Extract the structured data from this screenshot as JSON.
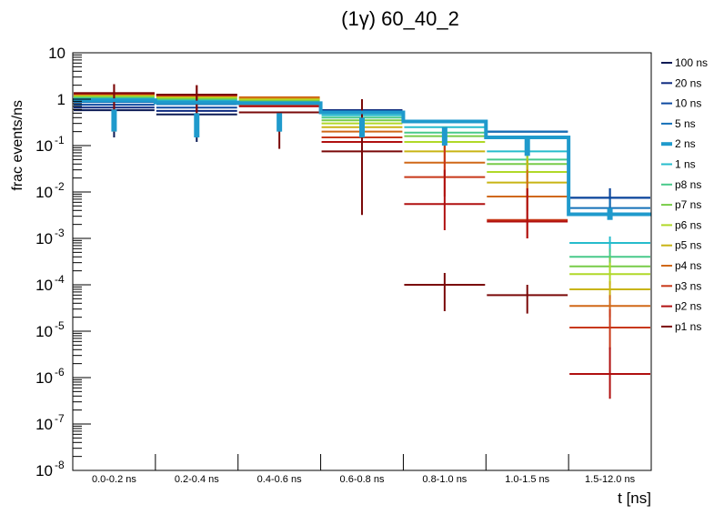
{
  "chart_data": {
    "type": "line",
    "title": "(1γ) 60_40_2",
    "xlabel": "t [ns]",
    "ylabel": "frac events/ns",
    "yscale": "log",
    "ylim": [
      1e-08,
      10
    ],
    "ytick_labels": [
      {
        "base": "10",
        "exp": "-8",
        "value": 1e-08
      },
      {
        "base": "10",
        "exp": "-7",
        "value": 1e-07
      },
      {
        "base": "10",
        "exp": "-6",
        "value": 1e-06
      },
      {
        "base": "10",
        "exp": "-5",
        "value": 1e-05
      },
      {
        "base": "10",
        "exp": "-4",
        "value": 0.0001
      },
      {
        "base": "10",
        "exp": "-3",
        "value": 0.001
      },
      {
        "base": "10",
        "exp": "-2",
        "value": 0.01
      },
      {
        "base": "10",
        "exp": "-1",
        "value": 0.1
      },
      {
        "base": "1",
        "exp": "",
        "value": 1
      },
      {
        "base": "10",
        "exp": "",
        "value": 10
      }
    ],
    "categories": [
      "0.0-0.2 ns",
      "0.2-0.4 ns",
      "0.4-0.6 ns",
      "0.6-0.8 ns",
      "0.8-1.0 ns",
      "1.0-1.5 ns",
      "1.5-12.0 ns"
    ],
    "legend_position": "right",
    "series": [
      {
        "name": "100 ns",
        "color": "#0b1a55",
        "values": [
          0.58,
          0.47,
          0.75,
          0.58,
          0.34,
          0.2,
          0.0075
        ],
        "err_lo": [
          0.15,
          0.12,
          0.2,
          0.15,
          0.1,
          0.06,
          0.004
        ],
        "err_hi": [
          0.6,
          0.5,
          0.5,
          0.4,
          0.25,
          0.15,
          0.012
        ]
      },
      {
        "name": "20 ns",
        "color": "#0d2a80",
        "values": [
          0.66,
          0.56,
          0.78,
          0.58,
          0.34,
          0.2,
          0.0075
        ],
        "err_lo": [
          0.2,
          0.15,
          0.2,
          0.15,
          0.1,
          0.06,
          0.004
        ],
        "err_hi": [
          0.6,
          0.5,
          0.5,
          0.4,
          0.25,
          0.15,
          0.012
        ]
      },
      {
        "name": "10 ns",
        "color": "#0d4aa0",
        "values": [
          0.76,
          0.66,
          0.8,
          0.55,
          0.34,
          0.2,
          0.0075
        ],
        "err_lo": [
          0.2,
          0.15,
          0.2,
          0.15,
          0.1,
          0.06,
          0.004
        ],
        "err_hi": [
          0.6,
          0.5,
          0.5,
          0.4,
          0.25,
          0.15,
          0.012
        ]
      },
      {
        "name": "5 ns",
        "color": "#1470b8",
        "values": [
          0.87,
          0.78,
          0.82,
          0.52,
          0.34,
          0.2,
          0.0045
        ],
        "err_lo": [
          0.2,
          0.15,
          0.2,
          0.15,
          0.1,
          0.06,
          0.003
        ],
        "err_hi": [
          0.6,
          0.5,
          0.5,
          0.4,
          0.25,
          0.15,
          0.007
        ]
      },
      {
        "name": "2 ns",
        "color": "#1f9acc",
        "thick": true,
        "values": [
          0.95,
          0.85,
          0.82,
          0.52,
          0.33,
          0.15,
          0.0033
        ],
        "err_lo": [
          0.2,
          0.15,
          0.2,
          0.15,
          0.1,
          0.06,
          0.0025
        ],
        "err_hi": [
          0.6,
          0.5,
          0.5,
          0.4,
          0.25,
          0.15,
          0.0045
        ]
      },
      {
        "name": "1 ns",
        "color": "#26bccc",
        "values": [
          1.05,
          0.95,
          0.85,
          0.45,
          0.25,
          0.075,
          0.0008
        ],
        "err_lo": [
          0.2,
          0.15,
          0.2,
          0.15,
          0.1,
          0.04,
          0.0005
        ],
        "err_hi": [
          0.6,
          0.5,
          0.5,
          0.4,
          0.25,
          0.1,
          0.0011
        ]
      },
      {
        "name": "p8 ns",
        "color": "#48c98a",
        "values": [
          1.1,
          1.0,
          0.9,
          0.4,
          0.19,
          0.05,
          0.0004
        ],
        "err_lo": [
          0.2,
          0.15,
          0.2,
          0.15,
          0.1,
          0.03,
          0.0003
        ],
        "err_hi": [
          0.6,
          0.5,
          0.5,
          0.4,
          0.25,
          0.1,
          0.0006
        ]
      },
      {
        "name": "p7 ns",
        "color": "#78cc48",
        "values": [
          1.15,
          1.05,
          0.95,
          0.35,
          0.16,
          0.04,
          0.00025
        ],
        "err_lo": [
          0.2,
          0.15,
          0.2,
          0.15,
          0.1,
          0.02,
          0.0002
        ],
        "err_hi": [
          0.6,
          0.5,
          0.5,
          0.4,
          0.25,
          0.1,
          0.0004
        ]
      },
      {
        "name": "p6 ns",
        "color": "#b0d828",
        "values": [
          1.2,
          1.1,
          1.0,
          0.3,
          0.12,
          0.027,
          0.00017
        ],
        "err_lo": [
          0.2,
          0.15,
          0.2,
          0.15,
          0.08,
          0.015,
          0.0001
        ],
        "err_hi": [
          0.6,
          0.5,
          0.5,
          0.4,
          0.25,
          0.1,
          0.0003
        ]
      },
      {
        "name": "p5 ns",
        "color": "#c8b414",
        "values": [
          1.25,
          1.15,
          1.05,
          0.25,
          0.075,
          0.016,
          8e-05
        ],
        "err_lo": [
          0.2,
          0.15,
          0.2,
          0.15,
          0.04,
          0.008,
          5e-05
        ],
        "err_hi": [
          0.6,
          0.5,
          0.5,
          0.4,
          0.2,
          0.05,
          0.00012
        ]
      },
      {
        "name": "p4 ns",
        "color": "#d06818",
        "values": [
          1.3,
          1.2,
          1.1,
          0.2,
          0.043,
          0.008,
          3.5e-05
        ],
        "err_lo": [
          0.2,
          0.15,
          0.2,
          0.1,
          0.02,
          0.004,
          2e-05
        ],
        "err_hi": [
          0.6,
          0.5,
          0.5,
          0.4,
          0.15,
          0.03,
          6e-05
        ]
      },
      {
        "name": "p3 ns",
        "color": "#c83818",
        "values": [
          1.3,
          1.2,
          0.75,
          0.15,
          0.021,
          0.0025,
          1.2e-05
        ],
        "err_lo": [
          0.2,
          0.15,
          0.2,
          0.08,
          0.008,
          0.001,
          4e-06
        ],
        "err_hi": [
          0.6,
          0.5,
          0.5,
          0.4,
          0.1,
          0.012,
          3e-05
        ]
      },
      {
        "name": "p2 ns",
        "color": "#b01010",
        "values": [
          1.35,
          1.25,
          0.7,
          0.12,
          0.0055,
          0.0023,
          1.2e-06
        ],
        "err_lo": [
          0.2,
          0.15,
          0.2,
          0.05,
          0.0015,
          0.001,
          3.5e-07
        ],
        "err_hi": [
          2.1,
          2.0,
          0.5,
          0.4,
          0.03,
          0.012,
          4.5e-06
        ]
      },
      {
        "name": "p1 ns",
        "color": "#7a0808",
        "values": [
          1.35,
          1.25,
          0.52,
          0.075,
          0.0001,
          6e-05,
          null
        ],
        "err_lo": [
          0.2,
          0.15,
          0.085,
          0.0032,
          2.7e-05,
          2.4e-05,
          null
        ],
        "err_hi": [
          2.1,
          2.0,
          0.5,
          1.0,
          0.00018,
          0.0001,
          null
        ]
      }
    ]
  }
}
